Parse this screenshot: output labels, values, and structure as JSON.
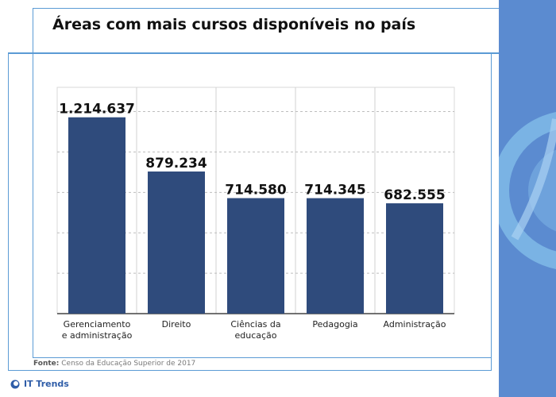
{
  "title": "Áreas com mais cursos disponíveis no país",
  "source": {
    "label": "Fonte:",
    "text": "Censo da Educação Superior de 2017"
  },
  "brand": {
    "name": "IT Trends"
  },
  "colors": {
    "bar": "#2f4b7c",
    "frame": "#5b9bd5",
    "panel": "#5b8bd0",
    "panel_swirl": "#7db7e6"
  },
  "chart_data": {
    "type": "bar",
    "title": "Áreas com mais cursos disponíveis no país",
    "xlabel": "",
    "ylabel": "",
    "grid": true,
    "categories": [
      [
        "Gerenciamento",
        "e administração"
      ],
      [
        "Direito"
      ],
      [
        "Ciências da",
        "educação"
      ],
      [
        "Pedagogia"
      ],
      [
        "Administração"
      ]
    ],
    "values": [
      1214637,
      879234,
      714580,
      714345,
      682555
    ],
    "value_labels": [
      "1.214.637",
      "879.234",
      "714.580",
      "714.345",
      "682.555"
    ],
    "ylim": [
      0,
      1400000
    ],
    "gridlines": [
      250000,
      500000,
      750000,
      1000000,
      1250000
    ]
  }
}
